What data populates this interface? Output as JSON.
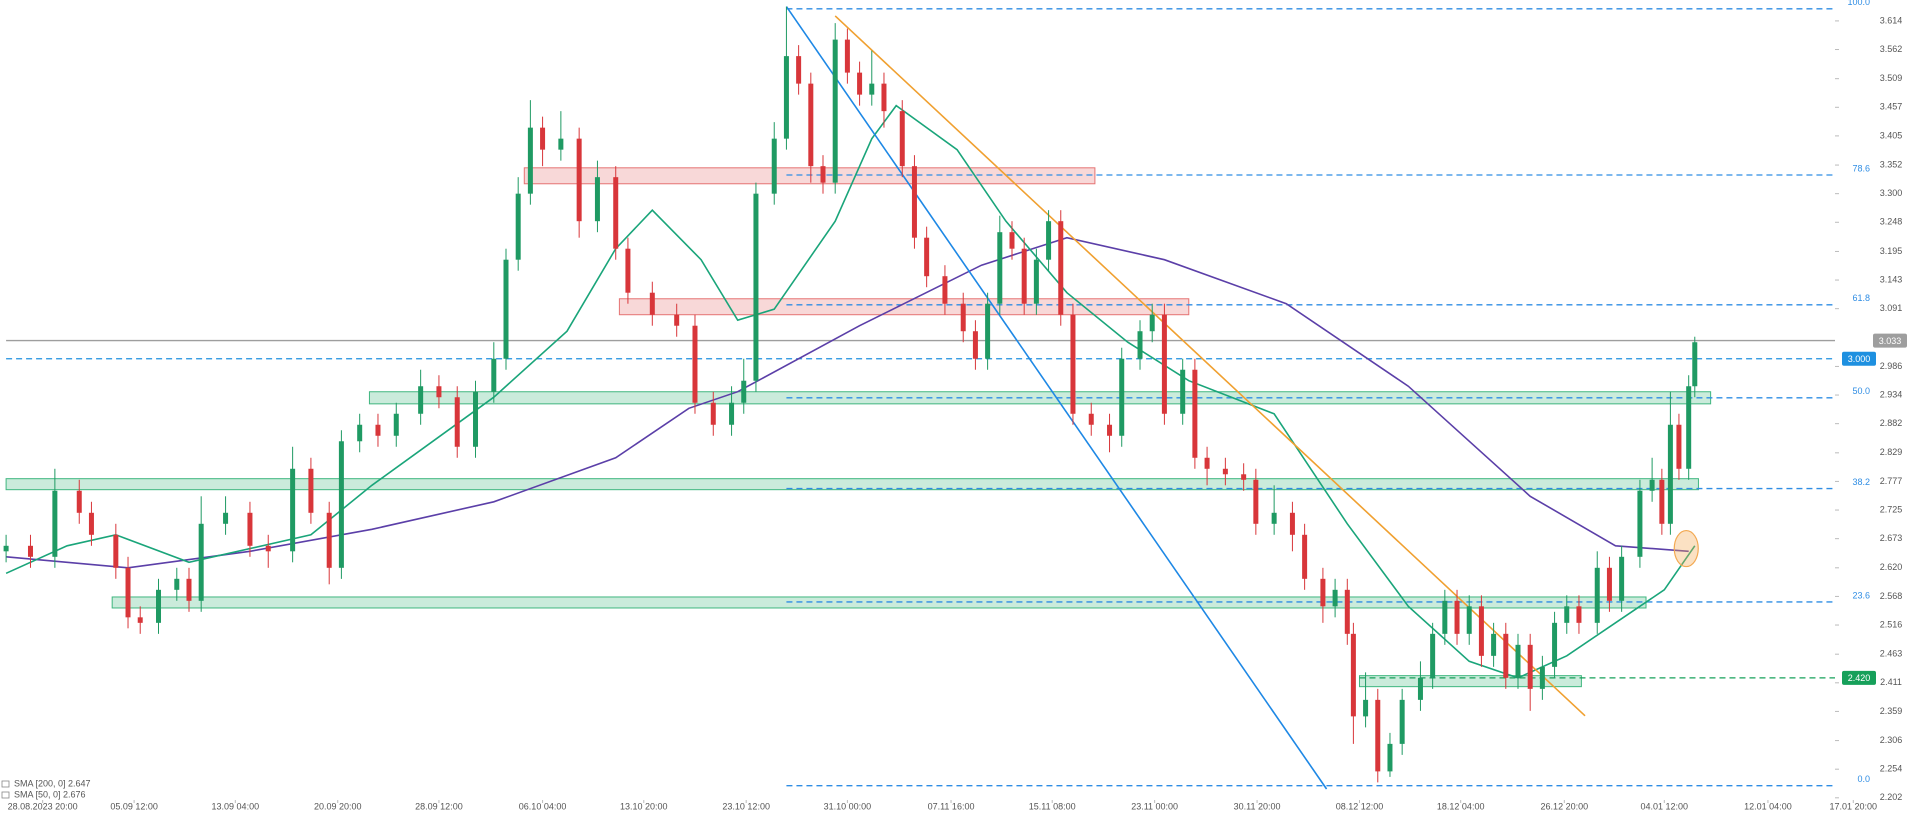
{
  "chart_data": {
    "type": "candlestick",
    "x": [
      0,
      2,
      4,
      6,
      7,
      9,
      10,
      11,
      12.5,
      14,
      15,
      16,
      18,
      20,
      21.5,
      23.5,
      25,
      26.5,
      27.5,
      29,
      30.5,
      32,
      34,
      35.5,
      37,
      38.5,
      40,
      41,
      42,
      43,
      44,
      45.5,
      47,
      48.5,
      50,
      51,
      53,
      55,
      56.5,
      58,
      59.5,
      60.5,
      61.5,
      63,
      64,
      65,
      66,
      67,
      68,
      69,
      70,
      71,
      72,
      73.5,
      74.5,
      75.5,
      77,
      78.5,
      79.5,
      80.5,
      81.5,
      82.5,
      83.5,
      84.5,
      85.5,
      86.5,
      87.5,
      89,
      90.5,
      91.5,
      93,
      94,
      95,
      96.5,
      97.5,
      98.5,
      100,
      101.5,
      102.5,
      104,
      105.5,
      106.5,
      108,
      109,
      110,
      110.5,
      111.5,
      112.5,
      113.5,
      114.5,
      116,
      117,
      118,
      119,
      120,
      121,
      122,
      123,
      124,
      125,
      126,
      127,
      128,
      129,
      130.5,
      131.5,
      132.5,
      134,
      135,
      135.8,
      136.5,
      137.2,
      138,
      138.5
    ],
    "open": [
      2.65,
      2.66,
      2.64,
      2.76,
      2.72,
      2.68,
      2.62,
      2.53,
      2.52,
      2.58,
      2.6,
      2.56,
      2.7,
      2.72,
      2.66,
      2.65,
      2.8,
      2.72,
      2.62,
      2.85,
      2.88,
      2.86,
      2.9,
      2.95,
      2.93,
      2.84,
      2.94,
      3.0,
      3.18,
      3.3,
      3.42,
      3.38,
      3.4,
      3.25,
      3.33,
      3.2,
      3.12,
      3.08,
      3.06,
      2.92,
      2.88,
      2.92,
      2.96,
      3.3,
      3.4,
      3.55,
      3.5,
      3.35,
      3.32,
      3.58,
      3.52,
      3.48,
      3.5,
      3.45,
      3.35,
      3.22,
      3.15,
      3.1,
      3.05,
      3.0,
      3.1,
      3.23,
      3.2,
      3.1,
      3.18,
      3.25,
      3.08,
      2.9,
      2.88,
      2.86,
      3.0,
      3.05,
      3.08,
      2.9,
      2.98,
      2.82,
      2.8,
      2.79,
      2.78,
      2.7,
      2.72,
      2.68,
      2.6,
      2.55,
      2.58,
      2.5,
      2.35,
      2.38,
      2.25,
      2.3,
      2.38,
      2.42,
      2.5,
      2.56,
      2.5,
      2.55,
      2.46,
      2.5,
      2.42,
      2.48,
      2.4,
      2.44,
      2.52,
      2.55,
      2.52,
      2.62,
      2.56,
      2.64,
      2.76,
      2.78,
      2.7,
      2.88,
      2.8,
      2.95
    ],
    "high": [
      2.68,
      2.68,
      2.8,
      2.78,
      2.74,
      2.7,
      2.64,
      2.55,
      2.6,
      2.62,
      2.62,
      2.75,
      2.75,
      2.74,
      2.68,
      2.84,
      2.82,
      2.74,
      2.87,
      2.9,
      2.9,
      2.92,
      2.98,
      2.97,
      2.95,
      2.96,
      3.03,
      3.2,
      3.33,
      3.47,
      3.44,
      3.45,
      3.42,
      3.36,
      3.35,
      3.22,
      3.14,
      3.1,
      3.08,
      2.94,
      2.95,
      3.0,
      3.32,
      3.43,
      3.64,
      3.57,
      3.52,
      3.37,
      3.61,
      3.6,
      3.54,
      3.56,
      3.52,
      3.47,
      3.37,
      3.24,
      3.17,
      3.12,
      3.07,
      3.12,
      3.26,
      3.25,
      3.22,
      3.2,
      3.27,
      3.27,
      3.1,
      2.92,
      2.9,
      3.02,
      3.07,
      3.1,
      3.1,
      3.0,
      3.0,
      2.84,
      2.82,
      2.81,
      2.8,
      2.77,
      2.74,
      2.7,
      2.62,
      2.6,
      2.6,
      2.52,
      2.43,
      2.4,
      2.32,
      2.4,
      2.45,
      2.52,
      2.58,
      2.58,
      2.57,
      2.57,
      2.52,
      2.52,
      2.5,
      2.5,
      2.46,
      2.54,
      2.57,
      2.57,
      2.65,
      2.64,
      2.66,
      2.78,
      2.82,
      2.8,
      2.94,
      2.9,
      2.97,
      3.04
    ],
    "low": [
      2.63,
      2.62,
      2.62,
      2.7,
      2.66,
      2.6,
      2.51,
      2.5,
      2.5,
      2.56,
      2.54,
      2.54,
      2.68,
      2.64,
      2.62,
      2.63,
      2.7,
      2.59,
      2.6,
      2.83,
      2.84,
      2.84,
      2.88,
      2.91,
      2.82,
      2.82,
      2.92,
      2.98,
      3.16,
      3.28,
      3.35,
      3.36,
      3.22,
      3.23,
      3.18,
      3.1,
      3.06,
      3.04,
      2.9,
      2.86,
      2.86,
      2.9,
      2.94,
      3.28,
      3.38,
      3.48,
      3.32,
      3.3,
      3.3,
      3.5,
      3.46,
      3.46,
      3.42,
      3.33,
      3.2,
      3.13,
      3.08,
      3.03,
      2.98,
      2.98,
      3.08,
      3.18,
      3.08,
      3.08,
      3.16,
      3.06,
      2.88,
      2.86,
      2.83,
      2.84,
      2.98,
      3.03,
      2.88,
      2.88,
      2.8,
      2.77,
      2.77,
      2.76,
      2.68,
      2.68,
      2.65,
      2.58,
      2.52,
      2.53,
      2.48,
      2.3,
      2.33,
      2.23,
      2.24,
      2.28,
      2.36,
      2.4,
      2.48,
      2.48,
      2.48,
      2.44,
      2.44,
      2.4,
      2.4,
      2.36,
      2.38,
      2.42,
      2.5,
      2.5,
      2.5,
      2.54,
      2.54,
      2.62,
      2.74,
      2.68,
      2.68,
      2.78,
      2.78,
      2.93
    ],
    "close": [
      2.66,
      2.64,
      2.76,
      2.72,
      2.68,
      2.62,
      2.53,
      2.52,
      2.58,
      2.6,
      2.56,
      2.7,
      2.72,
      2.66,
      2.65,
      2.8,
      2.72,
      2.62,
      2.85,
      2.88,
      2.86,
      2.9,
      2.95,
      2.93,
      2.84,
      2.94,
      3.0,
      3.18,
      3.3,
      3.42,
      3.38,
      3.4,
      3.25,
      3.33,
      3.2,
      3.12,
      3.08,
      3.06,
      2.92,
      2.88,
      2.92,
      2.96,
      3.3,
      3.4,
      3.55,
      3.5,
      3.35,
      3.32,
      3.58,
      3.52,
      3.48,
      3.5,
      3.45,
      3.35,
      3.22,
      3.15,
      3.1,
      3.05,
      3.0,
      3.1,
      3.23,
      3.2,
      3.1,
      3.18,
      3.25,
      3.08,
      2.9,
      2.88,
      2.86,
      3.0,
      3.05,
      3.08,
      2.9,
      2.98,
      2.82,
      2.8,
      2.79,
      2.78,
      2.7,
      2.72,
      2.68,
      2.6,
      2.55,
      2.58,
      2.5,
      2.35,
      2.38,
      2.25,
      2.3,
      2.38,
      2.42,
      2.5,
      2.56,
      2.5,
      2.55,
      2.46,
      2.5,
      2.42,
      2.48,
      2.4,
      2.44,
      2.52,
      2.55,
      2.52,
      2.62,
      2.56,
      2.64,
      2.76,
      2.78,
      2.7,
      2.88,
      2.8,
      2.95,
      3.03
    ],
    "up_color": "#1f9a63",
    "down_color": "#d8363a",
    "series": [
      {
        "name": "SMA [200, 0] 2.647",
        "color": "#5b3fa8",
        "x": [
          0,
          10,
          20,
          30,
          40,
          50,
          56,
          60,
          70,
          80,
          87,
          95,
          105,
          115,
          125,
          132,
          138
        ],
        "values": [
          2.64,
          2.62,
          2.65,
          2.69,
          2.74,
          2.82,
          2.91,
          2.94,
          3.06,
          3.17,
          3.22,
          3.18,
          3.1,
          2.95,
          2.75,
          2.66,
          2.65
        ]
      },
      {
        "name": "SMA [50, 0] 2.676",
        "color": "#1aa57a",
        "x": [
          0,
          5,
          9,
          15,
          25,
          30,
          35,
          40,
          46,
          50,
          53,
          57,
          60,
          63,
          68,
          71,
          73,
          78,
          82,
          87,
          92,
          97,
          104,
          110,
          115,
          120,
          124,
          128,
          132,
          136,
          138.5
        ],
        "values": [
          2.61,
          2.66,
          2.68,
          2.63,
          2.68,
          2.77,
          2.85,
          2.93,
          3.05,
          3.2,
          3.27,
          3.18,
          3.07,
          3.09,
          3.25,
          3.4,
          3.46,
          3.38,
          3.25,
          3.12,
          3.03,
          2.96,
          2.9,
          2.7,
          2.55,
          2.45,
          2.42,
          2.46,
          2.52,
          2.58,
          2.66
        ]
      }
    ],
    "levels": [
      {
        "value": 3.636,
        "label": "100.0",
        "start": 64
      },
      {
        "value": 3.334,
        "label": "78.6",
        "start": 64
      },
      {
        "value": 3.098,
        "label": "61.8",
        "start": 64
      },
      {
        "value": 2.929,
        "label": "50.0",
        "start": 64
      },
      {
        "value": 2.764,
        "label": "38.2",
        "start": 64
      },
      {
        "value": 2.558,
        "label": "23.6",
        "start": 64
      },
      {
        "value": 2.224,
        "label": "0.0",
        "start": 64
      }
    ],
    "level_color": "#2f8de4",
    "price_lines": [
      {
        "value": 3.033,
        "color": "#9e9e9e",
        "start": 0,
        "dashed": false
      },
      {
        "value": {
          "value": 3.0,
          "label": "3.000"
        },
        "color": "#1e90e0",
        "start": 0,
        "dashed": true
      },
      {
        "value": 2.42,
        "label": "2.420",
        "color": "#16a05a",
        "start": 111,
        "dashed": true
      }
    ],
    "zones": [
      {
        "x0": 42.5,
        "x1": 89.3,
        "y0": 3.318,
        "y1": 3.347,
        "color": "#e57373"
      },
      {
        "x0": 50.3,
        "x1": 97,
        "y0": 3.08,
        "y1": 3.109,
        "color": "#e57373"
      },
      {
        "x0": 29.8,
        "x1": 139.8,
        "y0": 2.918,
        "y1": 2.94,
        "color": "#3fb67f"
      },
      {
        "x0": 0,
        "x1": 138.8,
        "y0": 2.762,
        "y1": 2.782,
        "color": "#3fb67f"
      },
      {
        "x0": 8.7,
        "x1": 134.5,
        "y0": 2.547,
        "y1": 2.567,
        "color": "#3fb67f"
      },
      {
        "x0": 111,
        "x1": 129.2,
        "y0": 2.404,
        "y1": 2.424,
        "color": "#3fb67f"
      }
    ],
    "trendlines": [
      {
        "x": [
          64,
          108.3
        ],
        "y": [
          3.64,
          2.218
        ],
        "color": "#1e88e5"
      },
      {
        "x": [
          68,
          129.5
        ],
        "y": [
          3.623,
          2.351
        ],
        "color": "#f0a030"
      }
    ],
    "markers": [
      {
        "x": 137.8,
        "y": 2.655,
        "color": "#f3a952"
      }
    ],
    "xlim": [
      -0.5,
      150
    ],
    "ylim": [
      2.198,
      3.652
    ],
    "xticks": [
      {
        "value": 3,
        "label": "28.08.2023 20:00"
      },
      {
        "value": 10.5,
        "label": "05.09 12:00"
      },
      {
        "value": 18.8,
        "label": "13.09 04:00"
      },
      {
        "value": 27.2,
        "label": "20.09 20:00"
      },
      {
        "value": 35.5,
        "label": "28.09 12:00"
      },
      {
        "value": 44,
        "label": "06.10 04:00"
      },
      {
        "value": 52.3,
        "label": "13.10 20:00"
      },
      {
        "value": 60.7,
        "label": "23.10 12:00"
      },
      {
        "value": 69,
        "label": "31.10 00:00"
      },
      {
        "value": 77.5,
        "label": "07.11 16:00"
      },
      {
        "value": 85.8,
        "label": "15.11 08:00"
      },
      {
        "value": 94.2,
        "label": "23.11 00:00"
      },
      {
        "value": 102.6,
        "label": "30.11 20:00"
      },
      {
        "value": 111,
        "label": "08.12 12:00"
      },
      {
        "value": 119.3,
        "label": "18.12 04:00"
      },
      {
        "value": 127.8,
        "label": "26.12 20:00"
      },
      {
        "value": 136,
        "label": "04.01 12:00"
      },
      {
        "value": 144.5,
        "label": "12.01 04:00"
      },
      {
        "value": 151.5,
        "label": "17.01 20:00"
      }
    ],
    "yticks": [
      3.614,
      3.562,
      3.509,
      3.457,
      3.405,
      3.352,
      {
        "value": 3.3,
        "label": "3.300"
      },
      3.248,
      3.195,
      3.143,
      3.091,
      2.986,
      2.934,
      2.882,
      2.829,
      2.777,
      2.725,
      2.673,
      {
        "value": 2.62,
        "label": "2.620"
      },
      2.568,
      2.516,
      2.463,
      2.411,
      2.359,
      2.306,
      2.254,
      2.202
    ]
  }
}
